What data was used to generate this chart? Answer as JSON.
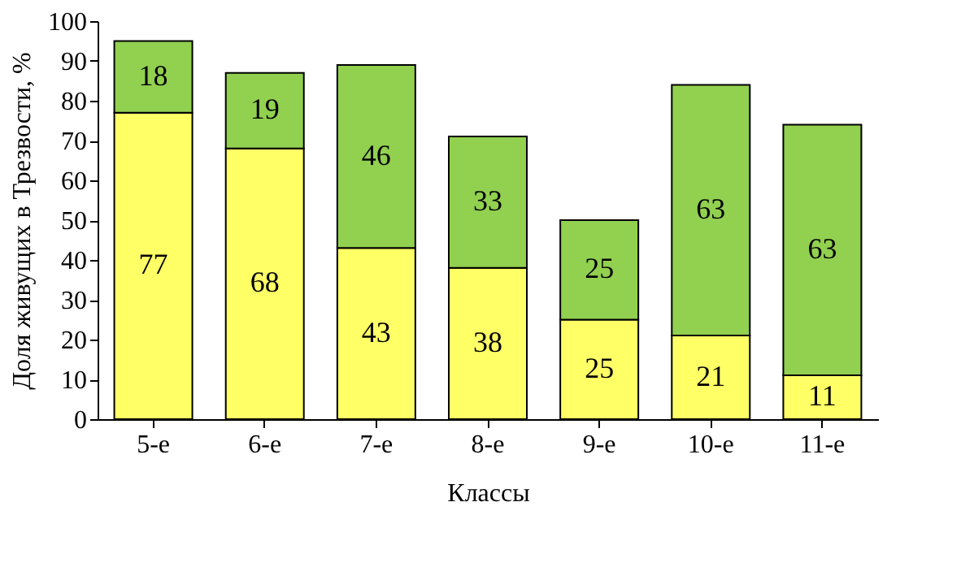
{
  "chart_data": {
    "type": "bar",
    "stacked": true,
    "xlabel": "Классы",
    "ylabel": "Доля живущих в Трезвости, %",
    "categories": [
      "5-е",
      "6-е",
      "7-е",
      "8-е",
      "9-е",
      "10-е",
      "11-е"
    ],
    "series": [
      {
        "color": "#ffff66",
        "values": [
          77,
          68,
          43,
          38,
          25,
          21,
          11
        ]
      },
      {
        "color": "#92d050",
        "values": [
          18,
          19,
          46,
          33,
          25,
          63,
          63
        ]
      }
    ],
    "ylim": [
      0,
      100
    ],
    "yticks": [
      0,
      10,
      20,
      30,
      40,
      50,
      60,
      70,
      80,
      90,
      100
    ],
    "grid": false,
    "data_labels": true
  }
}
